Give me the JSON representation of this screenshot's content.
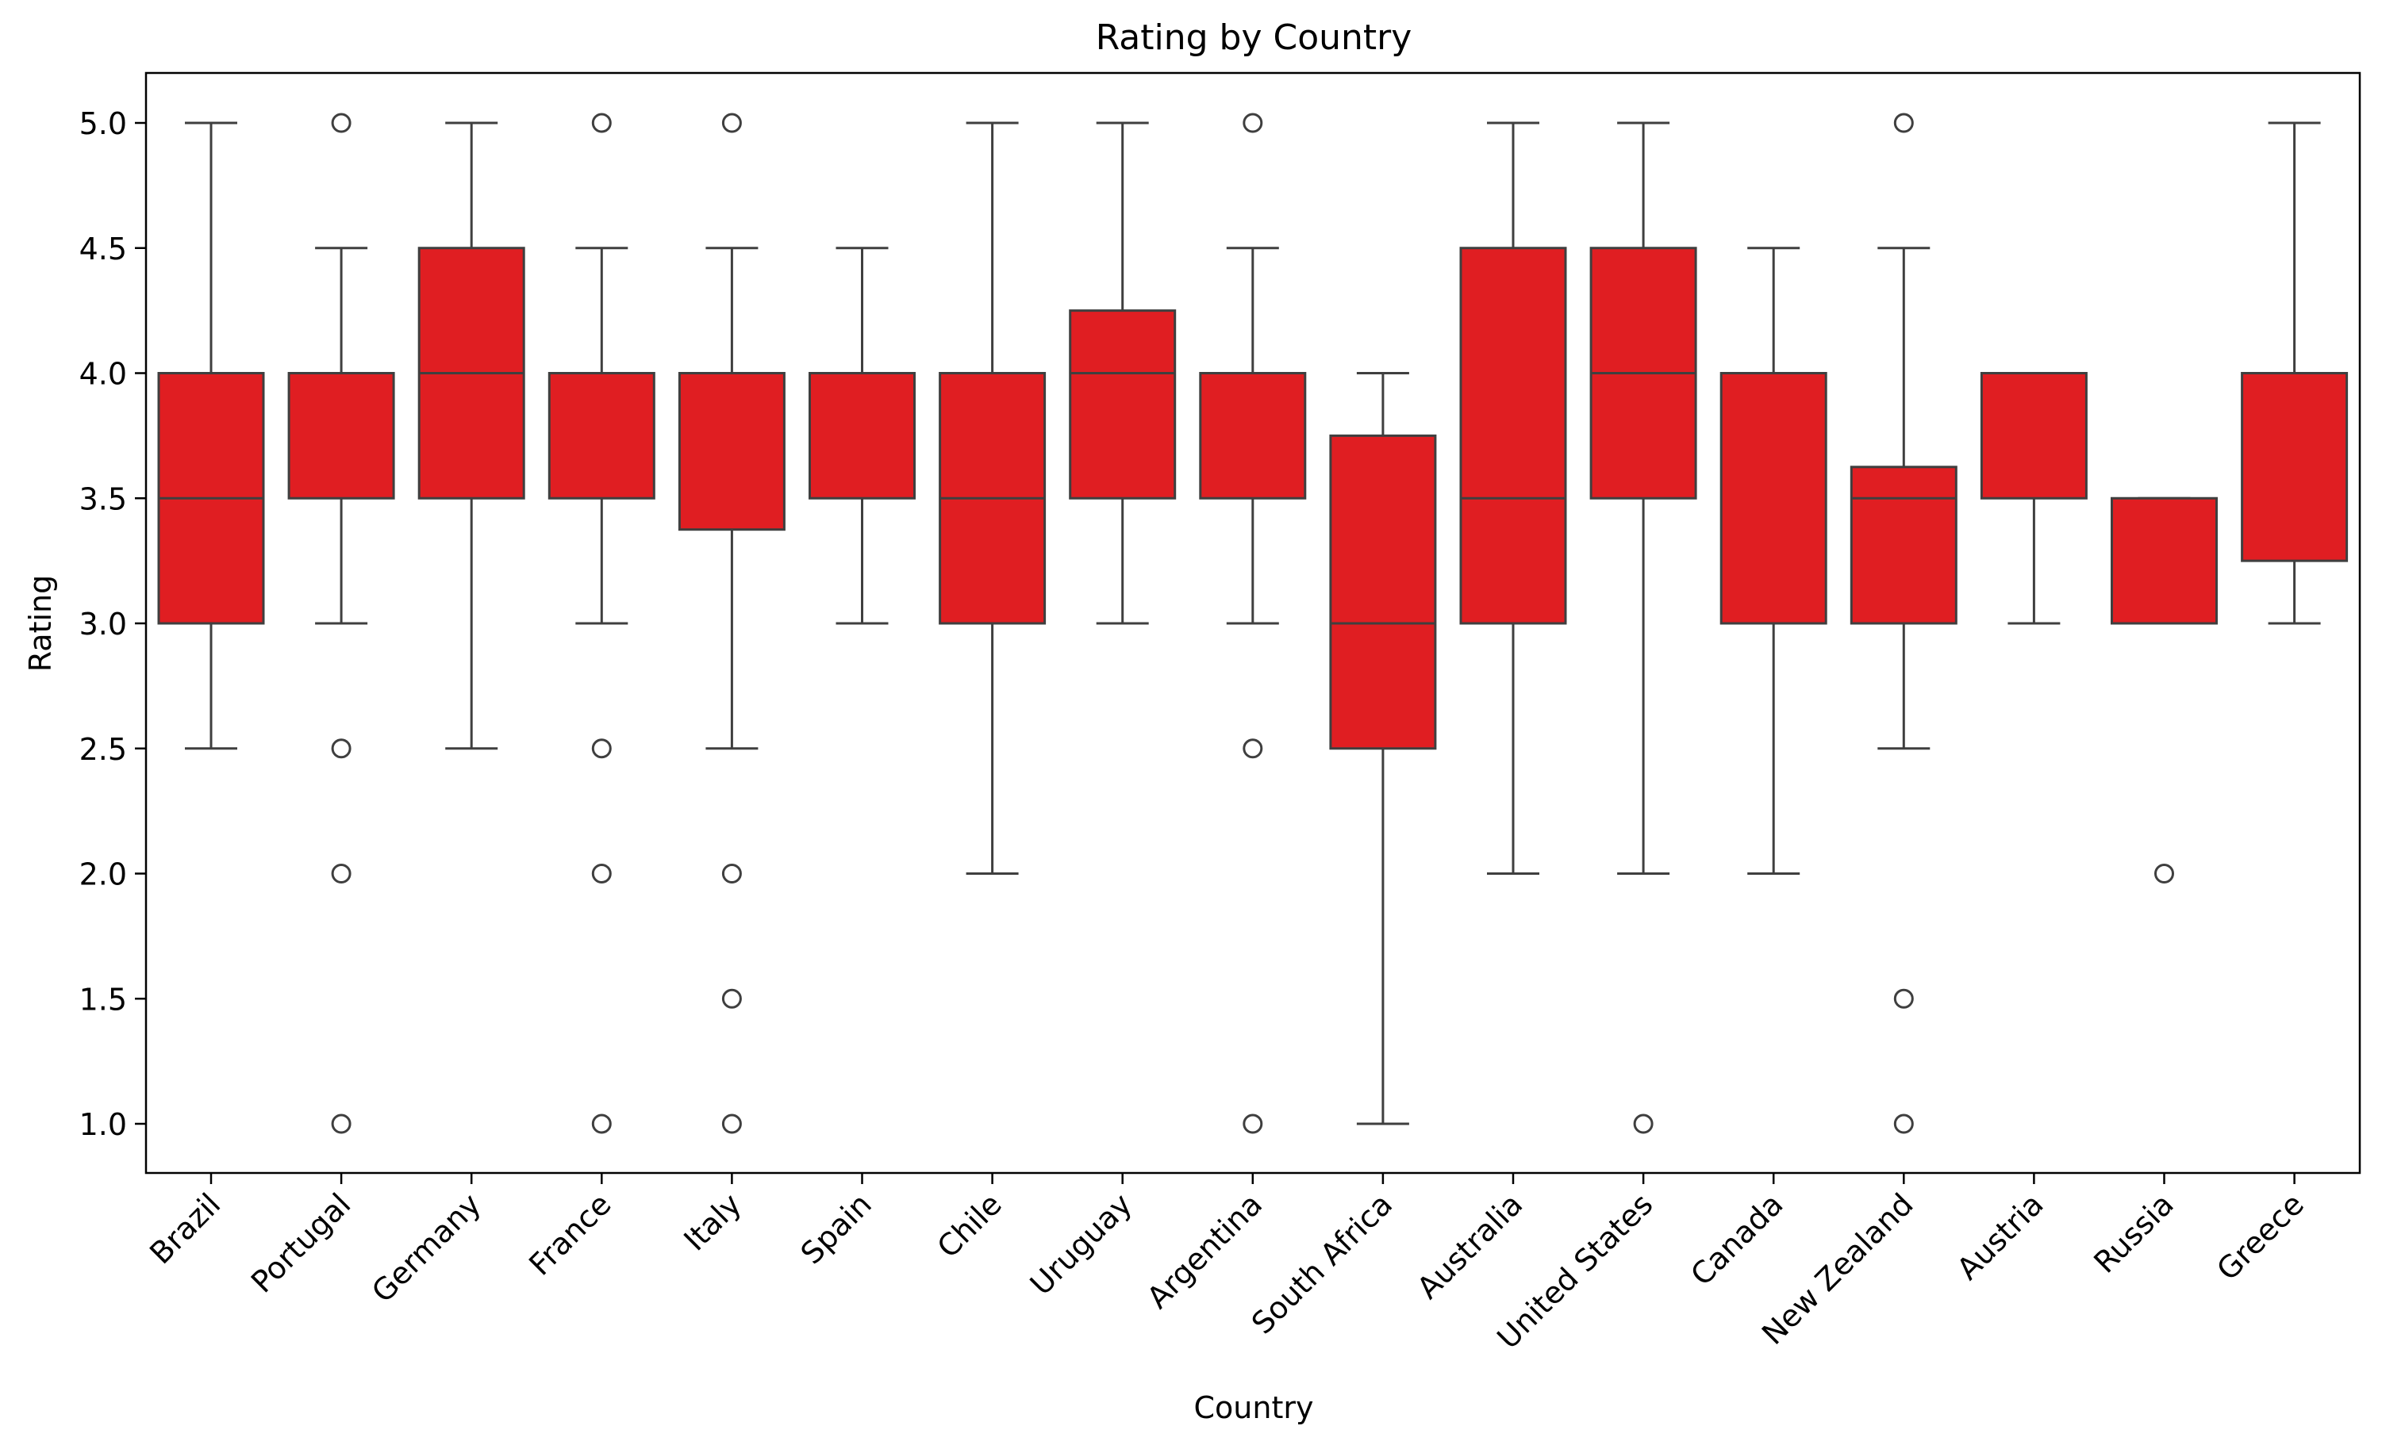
{
  "chart_data": {
    "type": "box",
    "title": "Rating by Country",
    "xlabel": "Country",
    "ylabel": "Rating",
    "ylim": [
      0.8,
      5.2
    ],
    "yticks": [
      1.0,
      1.5,
      2.0,
      2.5,
      3.0,
      3.5,
      4.0,
      4.5,
      5.0
    ],
    "ytick_labels": [
      "1.0",
      "1.5",
      "2.0",
      "2.5",
      "3.0",
      "3.5",
      "4.0",
      "4.5",
      "5.0"
    ],
    "grid": false,
    "box_color": "#e01e22",
    "line_color": "#3f3f3f",
    "categories": [
      "Brazil",
      "Portugal",
      "Germany",
      "France",
      "Italy",
      "Spain",
      "Chile",
      "Uruguay",
      "Argentina",
      "South Africa",
      "Australia",
      "United States",
      "Canada",
      "New Zealand",
      "Austria",
      "Russia",
      "Greece"
    ],
    "boxes": [
      {
        "whisker_low": 2.5,
        "q1": 3.0,
        "median": 3.5,
        "q3": 4.0,
        "whisker_high": 5.0,
        "outliers": []
      },
      {
        "whisker_low": 3.0,
        "q1": 3.5,
        "median": 4.0,
        "q3": 4.0,
        "whisker_high": 4.5,
        "outliers": [
          5.0,
          2.5,
          2.0,
          1.0
        ]
      },
      {
        "whisker_low": 2.5,
        "q1": 3.5,
        "median": 4.0,
        "q3": 4.5,
        "whisker_high": 5.0,
        "outliers": []
      },
      {
        "whisker_low": 3.0,
        "q1": 3.5,
        "median": 4.0,
        "q3": 4.0,
        "whisker_high": 4.5,
        "outliers": [
          5.0,
          2.5,
          2.0,
          1.0
        ]
      },
      {
        "whisker_low": 2.5,
        "q1": 3.375,
        "median": 4.0,
        "q3": 4.0,
        "whisker_high": 4.5,
        "outliers": [
          5.0,
          2.0,
          1.5,
          1.0
        ]
      },
      {
        "whisker_low": 3.0,
        "q1": 3.5,
        "median": 4.0,
        "q3": 4.0,
        "whisker_high": 4.5,
        "outliers": []
      },
      {
        "whisker_low": 2.0,
        "q1": 3.0,
        "median": 3.5,
        "q3": 4.0,
        "whisker_high": 5.0,
        "outliers": []
      },
      {
        "whisker_low": 3.0,
        "q1": 3.5,
        "median": 4.0,
        "q3": 4.25,
        "whisker_high": 5.0,
        "outliers": []
      },
      {
        "whisker_low": 3.0,
        "q1": 3.5,
        "median": 4.0,
        "q3": 4.0,
        "whisker_high": 4.5,
        "outliers": [
          5.0,
          2.5,
          1.0
        ]
      },
      {
        "whisker_low": 1.0,
        "q1": 2.5,
        "median": 3.0,
        "q3": 3.75,
        "whisker_high": 4.0,
        "outliers": []
      },
      {
        "whisker_low": 2.0,
        "q1": 3.0,
        "median": 3.5,
        "q3": 4.5,
        "whisker_high": 5.0,
        "outliers": []
      },
      {
        "whisker_low": 2.0,
        "q1": 3.5,
        "median": 4.0,
        "q3": 4.5,
        "whisker_high": 5.0,
        "outliers": [
          1.0
        ]
      },
      {
        "whisker_low": 2.0,
        "q1": 3.0,
        "median": 4.0,
        "q3": 4.0,
        "whisker_high": 4.5,
        "outliers": []
      },
      {
        "whisker_low": 2.5,
        "q1": 3.0,
        "median": 3.5,
        "q3": 3.625,
        "whisker_high": 4.5,
        "outliers": [
          5.0,
          1.5,
          1.0
        ]
      },
      {
        "whisker_low": 3.0,
        "q1": 3.5,
        "median": 4.0,
        "q3": 4.0,
        "whisker_high": 4.0,
        "outliers": []
      },
      {
        "whisker_low": 3.0,
        "q1": 3.0,
        "median": 3.0,
        "q3": 3.5,
        "whisker_high": 3.5,
        "outliers": [
          2.0
        ]
      },
      {
        "whisker_low": 3.0,
        "q1": 3.25,
        "median": 4.0,
        "q3": 4.0,
        "whisker_high": 5.0,
        "outliers": []
      }
    ]
  }
}
